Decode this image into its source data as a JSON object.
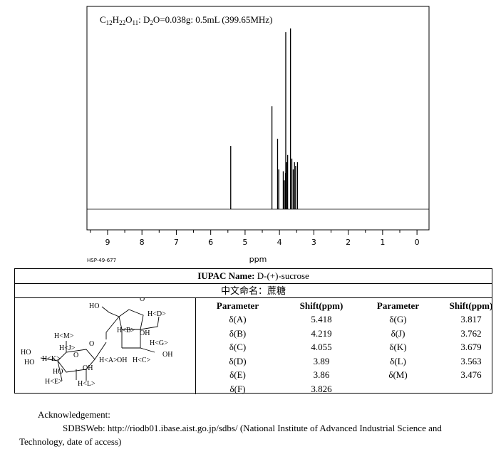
{
  "chart_data": {
    "type": "line",
    "title": "C12H22O11: D2O=0.038g: 0.5mL (399.65MHz)",
    "xlabel": "ppm",
    "ylabel": "",
    "xlim": [
      9.6,
      -0.35
    ],
    "x_reversed": true,
    "ticks": [
      9,
      8,
      7,
      6,
      5,
      4,
      3,
      2,
      1,
      0
    ],
    "tick_labels": [
      "9",
      "8",
      "7",
      "6",
      "5",
      "4",
      "3",
      "2",
      "1",
      "0"
    ],
    "grid": false,
    "peaks": [
      {
        "x": 5.418,
        "y": 0.35
      },
      {
        "x": 4.219,
        "y": 0.57
      },
      {
        "x": 4.055,
        "y": 0.39
      },
      {
        "x": 4.02,
        "y": 0.22
      },
      {
        "x": 3.89,
        "y": 0.21
      },
      {
        "x": 3.86,
        "y": 0.16
      },
      {
        "x": 3.826,
        "y": 0.2
      },
      {
        "x": 3.817,
        "y": 0.98
      },
      {
        "x": 3.79,
        "y": 0.26
      },
      {
        "x": 3.762,
        "y": 0.3
      },
      {
        "x": 3.679,
        "y": 1.0
      },
      {
        "x": 3.64,
        "y": 0.28
      },
      {
        "x": 3.6,
        "y": 0.22
      },
      {
        "x": 3.563,
        "y": 0.26
      },
      {
        "x": 3.53,
        "y": 0.24
      },
      {
        "x": 3.476,
        "y": 0.26
      }
    ]
  },
  "spectrum": {
    "sample_id": "HSP-49-677"
  },
  "table": {
    "iupac_label": "IUPAC Name:",
    "iupac_value": "D-(+)-sucrose",
    "chinese_name": "中文命名：蔗糖",
    "param_header": "Parameter",
    "shift_header": "Shift(ppm)",
    "left_rows": [
      {
        "param": "δ(A)",
        "shift": "5.418"
      },
      {
        "param": "δ(B)",
        "shift": "4.219"
      },
      {
        "param": "δ(C)",
        "shift": "4.055"
      },
      {
        "param": "δ(D)",
        "shift": "3.89"
      },
      {
        "param": "δ(E)",
        "shift": "3.86"
      },
      {
        "param": "δ(F)",
        "shift": "3.826"
      }
    ],
    "right_rows": [
      {
        "param": "δ(G)",
        "shift": "3.817"
      },
      {
        "param": "δ(J)",
        "shift": "3.762"
      },
      {
        "param": "δ(K)",
        "shift": "3.679"
      },
      {
        "param": "δ(L)",
        "shift": "3.563"
      },
      {
        "param": "δ(M)",
        "shift": "3.476"
      }
    ]
  },
  "structure": {
    "labels": [
      "HO",
      "H<G>",
      "H<D>",
      "H<B>",
      "OH",
      "H<M>",
      "H<J>",
      "H<K>",
      "H<E>",
      "H<A>",
      "H<C>",
      "H<L>",
      "O"
    ]
  },
  "acknowledgement": {
    "title": "Acknowledgement:",
    "line1": "SDBSWeb: http://riodb01.ibase.aist.go.jp/sdbs/ (National Institute of Advanced Industrial Science and",
    "line2": "Technology, date of access)"
  }
}
